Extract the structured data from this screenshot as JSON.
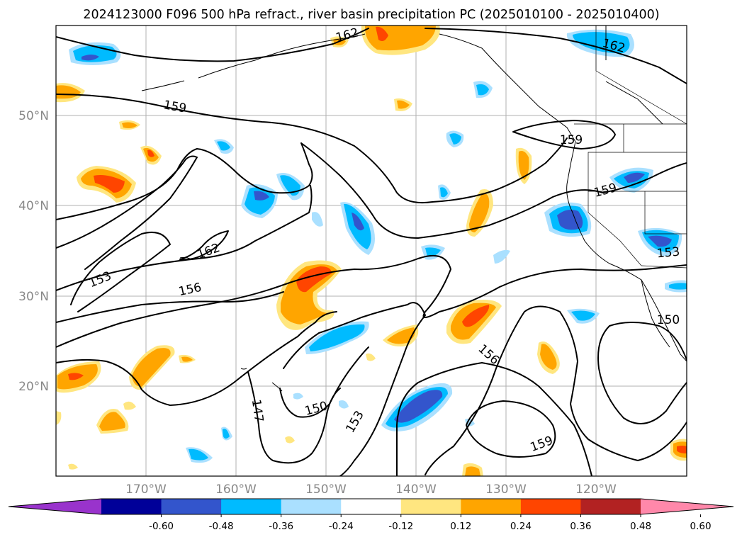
{
  "title": "2024123000 F096 500 hPa refract., river basin precipitation PC (2025010100 - 2025010400)",
  "lon_labels": [
    "170°W",
    "160°W",
    "150°W",
    "140°W",
    "130°W",
    "120°W"
  ],
  "lat_labels": [
    "50°N",
    "40°N",
    "30°N",
    "20°N"
  ],
  "contour_labels": [
    "162",
    "162",
    "159",
    "159",
    "159",
    "162",
    "153",
    "156",
    "153",
    "156",
    "150",
    "147",
    "150",
    "153",
    "159"
  ],
  "colorbar": {
    "tick_labels": [
      "-0.60",
      "-0.48",
      "-0.36",
      "-0.24",
      "-0.12",
      "0.12",
      "0.24",
      "0.36",
      "0.48",
      "0.60"
    ],
    "colors": [
      "#9933cc",
      "#000099",
      "#3355cc",
      "#00bbff",
      "#aae0ff",
      "#ffffff",
      "#ffe680",
      "#ffa500",
      "#ff4500",
      "#b22222",
      "#ff88aa"
    ]
  },
  "colors": {
    "neg_light": "#aae0ff",
    "neg_mid": "#00bbff",
    "neg_dark": "#3355cc",
    "pos_light": "#ffe680",
    "pos_mid": "#ffa500",
    "pos_dark": "#ff4500"
  }
}
